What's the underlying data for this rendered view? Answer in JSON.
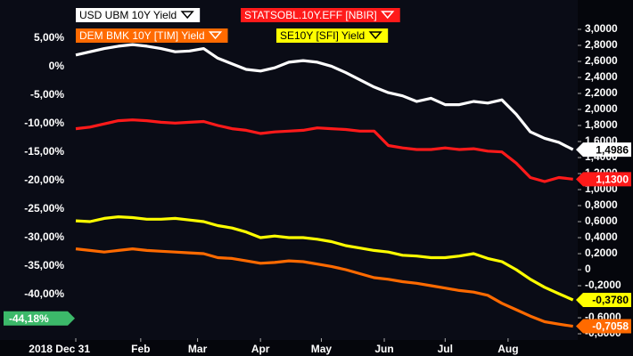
{
  "chart_data": {
    "type": "line",
    "x": [
      0,
      7,
      14,
      21,
      28,
      35,
      42,
      49,
      56,
      63,
      70,
      77,
      84,
      91,
      98,
      105,
      112,
      119,
      126,
      133,
      140,
      147,
      154,
      161,
      168,
      175,
      182,
      189,
      196,
      203,
      210,
      217,
      224,
      231,
      238,
      245
    ],
    "xlim": [
      0,
      246
    ],
    "xticks": [
      {
        "value": 0,
        "label": "2018 Dec 31"
      },
      {
        "value": 32,
        "label": "Feb"
      },
      {
        "value": 60,
        "label": "Mar"
      },
      {
        "value": 91,
        "label": "Apr"
      },
      {
        "value": 121,
        "label": "May"
      },
      {
        "value": 152,
        "label": "Jun"
      },
      {
        "value": 182,
        "label": "Jul"
      },
      {
        "value": 213,
        "label": "Aug"
      }
    ],
    "ylim": [
      -47.34,
      7.81
    ],
    "yticks": [
      {
        "value": 5,
        "label": "5,00%"
      },
      {
        "value": 0,
        "label": "0%"
      },
      {
        "value": -5,
        "label": "-5,00%"
      },
      {
        "value": -10,
        "label": "-10,00%"
      },
      {
        "value": -15,
        "label": "-15,00%"
      },
      {
        "value": -20,
        "label": "-20,00%"
      },
      {
        "value": -25,
        "label": "-25,00%"
      },
      {
        "value": -30,
        "label": "-30,00%"
      },
      {
        "value": -35,
        "label": "-35,00%"
      },
      {
        "value": -40,
        "label": "-40,00%"
      }
    ],
    "left_marker": {
      "value": -44.18,
      "label": "-44,18%",
      "color": "#3cb96a"
    },
    "y2lim": [
      -0.833,
      3.089
    ],
    "y2ticks": [
      {
        "value": 3.0,
        "label": "3,0000"
      },
      {
        "value": 2.8,
        "label": "2,8000"
      },
      {
        "value": 2.6,
        "label": "2,6000"
      },
      {
        "value": 2.4,
        "label": "2,4000"
      },
      {
        "value": 2.2,
        "label": "2,2000"
      },
      {
        "value": 2.0,
        "label": "2,0000"
      },
      {
        "value": 1.8,
        "label": "1,8000"
      },
      {
        "value": 1.6,
        "label": "1,6000"
      },
      {
        "value": 1.4,
        "label": "1,4000"
      },
      {
        "value": 1.2,
        "label": "1,2000"
      },
      {
        "value": 1.0,
        "label": "1,0000"
      },
      {
        "value": 0.8,
        "label": "0,8000"
      },
      {
        "value": 0.6,
        "label": "0,6000"
      },
      {
        "value": 0.4,
        "label": "0,4000"
      },
      {
        "value": 0.2,
        "label": "0,2000"
      },
      0,
      {
        "value": -0.2,
        "label": "-0,2000"
      },
      {
        "value": -0.4,
        "label": "-0,4000"
      },
      {
        "value": -0.6,
        "label": "-0,6000"
      },
      {
        "value": -0.8,
        "label": "-0,8000"
      }
    ],
    "grid": false,
    "series": [
      {
        "name": "USD UBM 10Y Yield",
        "color": "#ffffff",
        "axis": "y2",
        "values": [
          2.68,
          2.72,
          2.76,
          2.79,
          2.81,
          2.79,
          2.76,
          2.72,
          2.73,
          2.76,
          2.64,
          2.57,
          2.5,
          2.48,
          2.52,
          2.59,
          2.61,
          2.59,
          2.54,
          2.46,
          2.37,
          2.28,
          2.21,
          2.17,
          2.1,
          2.14,
          2.06,
          2.06,
          2.1,
          2.08,
          2.12,
          1.94,
          1.72,
          1.64,
          1.59,
          1.4986
        ],
        "value_labels": [
          null,
          null,
          null,
          null,
          null,
          null,
          null,
          null,
          null,
          null,
          null,
          null,
          null,
          null,
          null,
          null,
          null,
          null,
          null,
          null,
          null,
          null,
          null,
          null,
          null,
          null,
          null,
          null,
          null,
          null,
          null,
          null,
          null,
          null,
          null,
          "1,4986"
        ]
      },
      {
        "name": "STATSOBL.10Y.EFF [NBIR]",
        "color": "#ff1a1a",
        "axis": "y2",
        "values": [
          1.76,
          1.78,
          1.82,
          1.86,
          1.87,
          1.86,
          1.84,
          1.83,
          1.84,
          1.85,
          1.8,
          1.76,
          1.74,
          1.7,
          1.72,
          1.73,
          1.74,
          1.77,
          1.76,
          1.75,
          1.73,
          1.73,
          1.55,
          1.52,
          1.5,
          1.5,
          1.52,
          1.5,
          1.51,
          1.48,
          1.47,
          1.33,
          1.15,
          1.1,
          1.15,
          1.13
        ],
        "value_labels": [
          null,
          null,
          null,
          null,
          null,
          null,
          null,
          null,
          null,
          null,
          null,
          null,
          null,
          null,
          null,
          null,
          null,
          null,
          null,
          null,
          null,
          null,
          null,
          null,
          null,
          null,
          null,
          null,
          null,
          null,
          null,
          null,
          null,
          null,
          null,
          "1,1300"
        ]
      },
      {
        "name": "DEM BMK 10Y [TIM] Yield",
        "color": "#ff6a00",
        "axis": "y2",
        "values": [
          0.26,
          0.24,
          0.22,
          0.24,
          0.26,
          0.24,
          0.23,
          0.22,
          0.21,
          0.2,
          0.15,
          0.14,
          0.11,
          0.08,
          0.09,
          0.11,
          0.1,
          0.07,
          0.04,
          0,
          -0.05,
          -0.1,
          -0.12,
          -0.15,
          -0.17,
          -0.2,
          -0.23,
          -0.26,
          -0.28,
          -0.32,
          -0.42,
          -0.5,
          -0.58,
          -0.65,
          -0.68,
          -0.7058
        ],
        "value_labels": [
          null,
          null,
          null,
          null,
          null,
          null,
          null,
          null,
          null,
          null,
          null,
          null,
          null,
          null,
          null,
          null,
          null,
          null,
          null,
          null,
          null,
          null,
          null,
          null,
          null,
          null,
          null,
          null,
          null,
          null,
          null,
          null,
          null,
          null,
          null,
          "-0,7058"
        ]
      },
      {
        "name": "SE10Y [SFI] Yield",
        "color": "#ffff00",
        "axis": "y2",
        "values": [
          0.61,
          0.6,
          0.64,
          0.66,
          0.65,
          0.63,
          0.63,
          0.64,
          0.62,
          0.6,
          0.55,
          0.52,
          0.47,
          0.4,
          0.42,
          0.4,
          0.4,
          0.38,
          0.35,
          0.3,
          0.27,
          0.24,
          0.22,
          0.18,
          0.17,
          0.15,
          0.15,
          0.17,
          0.2,
          0.14,
          0.1,
          0,
          -0.12,
          -0.22,
          -0.3,
          -0.378
        ],
        "value_labels": [
          null,
          null,
          null,
          null,
          null,
          null,
          null,
          null,
          null,
          null,
          null,
          null,
          null,
          null,
          null,
          null,
          null,
          null,
          null,
          null,
          null,
          null,
          null,
          null,
          null,
          null,
          null,
          null,
          null,
          null,
          null,
          null,
          null,
          null,
          null,
          "-0,3780"
        ]
      }
    ]
  }
}
